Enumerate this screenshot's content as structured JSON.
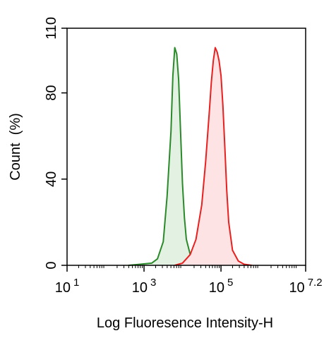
{
  "chart_data": {
    "type": "area",
    "xlabel": "Log Fluoresence Intensity-H",
    "ylabel": "Count  (%)",
    "xscale": "log10",
    "xlim": [
      1,
      7.2
    ],
    "ylim": [
      0,
      110
    ],
    "grid": false,
    "legend": "none",
    "x_ticks": [
      {
        "pos": 1,
        "base": "10",
        "exp": "1"
      },
      {
        "pos": 3,
        "base": "10",
        "exp": "3"
      },
      {
        "pos": 5,
        "base": "10",
        "exp": "5"
      },
      {
        "pos": 7.2,
        "base": "10",
        "exp": "7.2"
      }
    ],
    "y_ticks": [
      {
        "value": 0,
        "label": "0"
      },
      {
        "value": 40,
        "label": "40"
      },
      {
        "value": 80,
        "label": "80"
      },
      {
        "value": 110,
        "label": "110"
      }
    ],
    "series": [
      {
        "color": "#2a8a2a",
        "fill": "#e3f1e3",
        "x": [
          2.6,
          2.9,
          3.2,
          3.35,
          3.5,
          3.6,
          3.7,
          3.75,
          3.8,
          3.85,
          3.9,
          3.95,
          4.0,
          4.05,
          4.1,
          4.2,
          4.3,
          4.45,
          4.6,
          4.8
        ],
        "y": [
          0,
          0.5,
          1,
          3,
          11,
          32,
          62,
          88,
          101,
          98,
          86,
          62,
          38,
          22,
          12,
          5,
          2,
          1,
          0.5,
          0
        ]
      },
      {
        "color": "#e82020",
        "fill": "#fde3e3",
        "x": [
          3.8,
          4.0,
          4.2,
          4.35,
          4.5,
          4.6,
          4.7,
          4.75,
          4.8,
          4.85,
          4.9,
          4.95,
          5.0,
          5.05,
          5.1,
          5.15,
          5.2,
          5.3,
          5.45,
          5.6,
          5.8
        ],
        "y": [
          0,
          1,
          5,
          12,
          28,
          48,
          72,
          85,
          95,
          101,
          99,
          95,
          88,
          74,
          55,
          35,
          20,
          7,
          2,
          0.5,
          0
        ]
      }
    ]
  }
}
